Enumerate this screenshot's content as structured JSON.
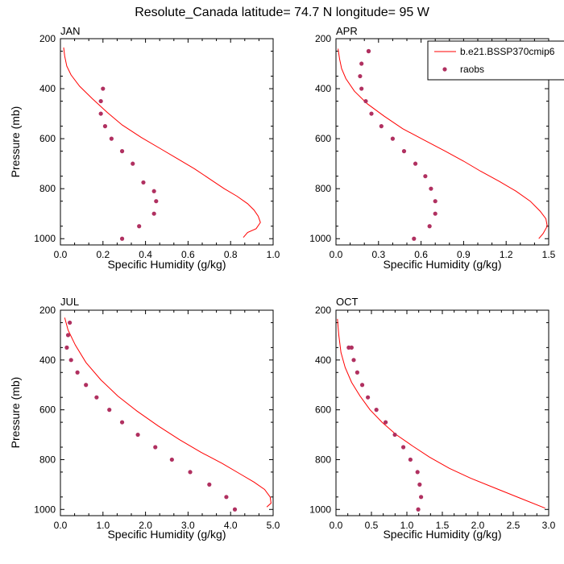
{
  "figure": {
    "title": "Resolute_Canada  latitude= 74.7 N longitude= 95 W"
  },
  "chart_data": [
    {
      "type": "line",
      "panel": "JAN",
      "xlabel": "Specific Humidity (g/kg)",
      "ylabel": "Pressure (mb)",
      "xlim": [
        0,
        1.0
      ],
      "ylim": [
        200,
        1025
      ],
      "y_inverted": true,
      "xticks": [
        "0.0",
        "0.2",
        "0.4",
        "0.6",
        "0.8",
        "1.0"
      ],
      "yticks": [
        "200",
        "400",
        "600",
        "800",
        "1000"
      ],
      "series": [
        {
          "name": "b.e21.BSSP370cmip6",
          "style": "line",
          "color": "#ff0000",
          "x": [
            0.86,
            0.88,
            0.92,
            0.94,
            0.93,
            0.91,
            0.88,
            0.83,
            0.77,
            0.7,
            0.63,
            0.55,
            0.47,
            0.38,
            0.29,
            0.22,
            0.15,
            0.09,
            0.05,
            0.03,
            0.02,
            0.015
          ],
          "y": [
            995,
            975,
            960,
            935,
            910,
            885,
            860,
            830,
            800,
            760,
            720,
            680,
            640,
            595,
            545,
            495,
            440,
            390,
            345,
            310,
            270,
            235
          ]
        },
        {
          "name": "raobs",
          "style": "markers",
          "color": "#b03060",
          "x": [
            0.29,
            0.37,
            0.44,
            0.45,
            0.44,
            0.39,
            0.34,
            0.29,
            0.24,
            0.21,
            0.19,
            0.19,
            0.2
          ],
          "y": [
            1000,
            950,
            900,
            850,
            810,
            775,
            700,
            650,
            600,
            550,
            500,
            450,
            400
          ]
        }
      ]
    },
    {
      "type": "line",
      "panel": "APR",
      "xlabel": "Specific Humidity (g/kg)",
      "ylabel": "",
      "xlim": [
        0,
        1.5
      ],
      "ylim": [
        200,
        1025
      ],
      "y_inverted": true,
      "xticks": [
        "0.0",
        "0.3",
        "0.6",
        "0.9",
        "1.2",
        "1.5"
      ],
      "yticks": [
        "200",
        "400",
        "600",
        "800",
        "1000"
      ],
      "legend": {
        "placement": "top-right",
        "entries": [
          "b.e21.BSSP370cmip6",
          "raobs"
        ]
      },
      "series": [
        {
          "name": "b.e21.BSSP370cmip6",
          "style": "line",
          "color": "#ff0000",
          "x": [
            1.43,
            1.46,
            1.49,
            1.48,
            1.44,
            1.37,
            1.27,
            1.15,
            1.02,
            0.9,
            0.77,
            0.62,
            0.47,
            0.34,
            0.22,
            0.13,
            0.07,
            0.04,
            0.025,
            0.015
          ],
          "y": [
            1000,
            980,
            950,
            920,
            890,
            850,
            810,
            770,
            730,
            690,
            650,
            605,
            560,
            510,
            460,
            410,
            360,
            320,
            280,
            240
          ]
        },
        {
          "name": "raobs",
          "style": "markers",
          "color": "#b03060",
          "x": [
            0.55,
            0.66,
            0.7,
            0.7,
            0.67,
            0.63,
            0.56,
            0.48,
            0.4,
            0.32,
            0.25,
            0.21,
            0.18,
            0.17,
            0.18,
            0.23,
            0.23
          ],
          "y": [
            1000,
            950,
            900,
            850,
            800,
            750,
            700,
            650,
            600,
            550,
            500,
            450,
            400,
            350,
            300,
            250,
            250
          ]
        }
      ]
    },
    {
      "type": "line",
      "panel": "JUL",
      "xlabel": "Specific Humidity (g/kg)",
      "ylabel": "Pressure (mb)",
      "xlim": [
        0,
        5.0
      ],
      "ylim": [
        200,
        1025
      ],
      "y_inverted": true,
      "xticks": [
        "0.0",
        "1.0",
        "2.0",
        "3.0",
        "4.0",
        "5.0"
      ],
      "yticks": [
        "200",
        "400",
        "600",
        "800",
        "1000"
      ],
      "series": [
        {
          "name": "b.e21.BSSP370cmip6",
          "style": "line",
          "color": "#ff0000",
          "x": [
            4.85,
            4.95,
            4.93,
            4.8,
            4.55,
            4.2,
            3.8,
            3.3,
            2.8,
            2.3,
            1.8,
            1.35,
            0.95,
            0.6,
            0.35,
            0.18,
            0.1
          ],
          "y": [
            990,
            975,
            950,
            920,
            890,
            855,
            815,
            770,
            720,
            665,
            605,
            545,
            480,
            410,
            340,
            280,
            230
          ]
        },
        {
          "name": "raobs",
          "style": "markers",
          "color": "#b03060",
          "x": [
            4.1,
            3.9,
            3.5,
            3.05,
            2.62,
            2.23,
            1.82,
            1.45,
            1.15,
            0.85,
            0.6,
            0.4,
            0.25,
            0.15,
            0.18,
            0.22
          ],
          "y": [
            1000,
            950,
            900,
            850,
            800,
            750,
            700,
            650,
            600,
            550,
            500,
            450,
            400,
            350,
            300,
            250
          ]
        }
      ]
    },
    {
      "type": "line",
      "panel": "OCT",
      "xlabel": "Specific Humidity (g/kg)",
      "ylabel": "",
      "xlim": [
        0,
        3.0
      ],
      "ylim": [
        200,
        1025
      ],
      "y_inverted": true,
      "xticks": [
        "0.0",
        "0.5",
        "1.0",
        "1.5",
        "2.0",
        "2.5",
        "3.0"
      ],
      "yticks": [
        "200",
        "400",
        "600",
        "800",
        "1000"
      ],
      "series": [
        {
          "name": "b.e21.BSSP370cmip6",
          "style": "line",
          "color": "#ff0000",
          "x": [
            2.95,
            2.6,
            2.25,
            1.9,
            1.6,
            1.32,
            1.08,
            0.85,
            0.65,
            0.48,
            0.34,
            0.22,
            0.13,
            0.07,
            0.04,
            0.02
          ],
          "y": [
            995,
            955,
            915,
            875,
            835,
            790,
            745,
            700,
            650,
            600,
            545,
            490,
            430,
            370,
            300,
            235
          ]
        },
        {
          "name": "raobs",
          "style": "markers",
          "color": "#b03060",
          "x": [
            1.16,
            1.2,
            1.18,
            1.15,
            1.05,
            0.95,
            0.83,
            0.7,
            0.57,
            0.45,
            0.37,
            0.3,
            0.25,
            0.22,
            0.18
          ],
          "y": [
            1000,
            950,
            900,
            850,
            800,
            750,
            700,
            650,
            600,
            550,
            500,
            450,
            400,
            350,
            350
          ]
        }
      ]
    }
  ]
}
